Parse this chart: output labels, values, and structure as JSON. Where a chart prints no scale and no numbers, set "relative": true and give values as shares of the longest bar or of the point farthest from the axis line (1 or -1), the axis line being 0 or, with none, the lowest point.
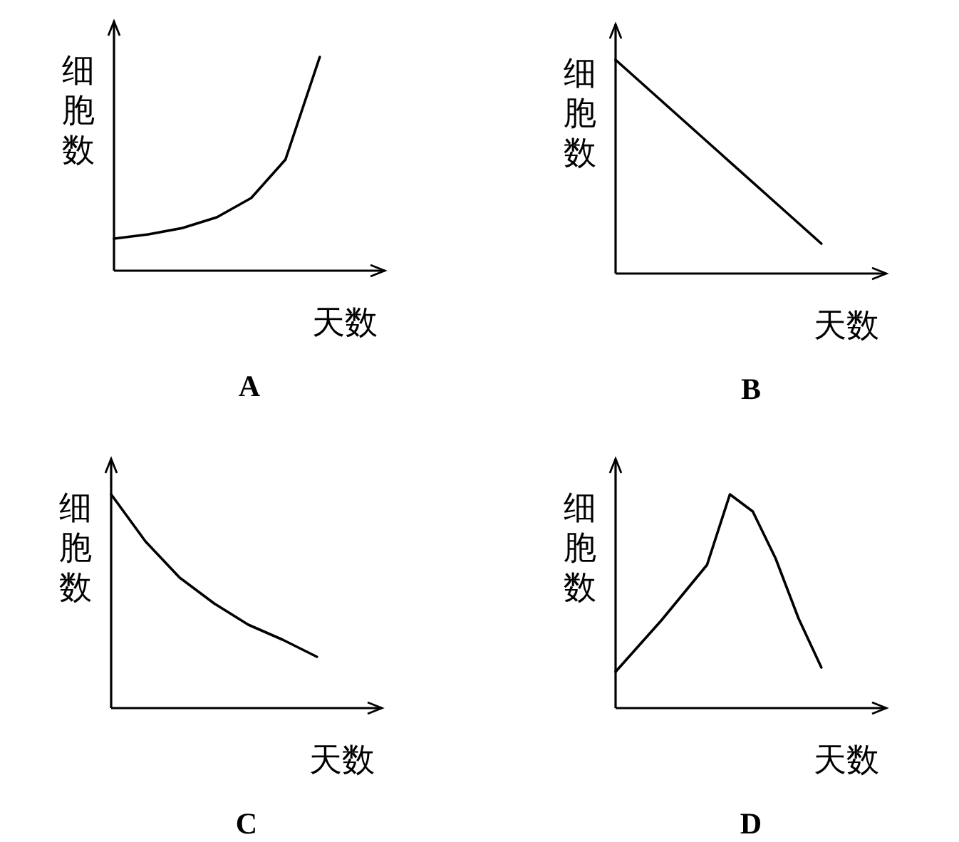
{
  "chart_data": [
    {
      "type": "line",
      "title": "A",
      "xlabel": "天数",
      "ylabel": "细胞数",
      "relative": true,
      "categories": [
        null,
        null,
        null,
        null,
        null,
        null,
        null
      ],
      "values": [
        0.15,
        0.17,
        0.2,
        0.25,
        0.34,
        0.52,
        1.0
      ],
      "color": "#000000"
    },
    {
      "type": "line",
      "title": "B",
      "xlabel": "天数",
      "ylabel": "细胞数",
      "relative": true,
      "categories": [
        null,
        null,
        null,
        null,
        null
      ],
      "values": [
        1.0,
        0.785,
        0.57,
        0.355,
        0.14
      ],
      "color": "#000000"
    },
    {
      "type": "line",
      "title": "C",
      "xlabel": "天数",
      "ylabel": "细胞数",
      "relative": true,
      "categories": [
        null,
        null,
        null,
        null,
        null,
        null,
        null
      ],
      "values": [
        1.0,
        0.78,
        0.61,
        0.49,
        0.39,
        0.32,
        0.24
      ],
      "color": "#000000"
    },
    {
      "type": "line",
      "title": "D",
      "xlabel": "天数",
      "ylabel": "细胞数",
      "relative": true,
      "categories": [
        null,
        null,
        null,
        null,
        null,
        null,
        null,
        null,
        null,
        null
      ],
      "values": [
        0.17,
        0.29,
        0.41,
        0.54,
        0.67,
        1.0,
        0.92,
        0.7,
        0.42,
        0.19
      ],
      "color": "#000000"
    }
  ]
}
